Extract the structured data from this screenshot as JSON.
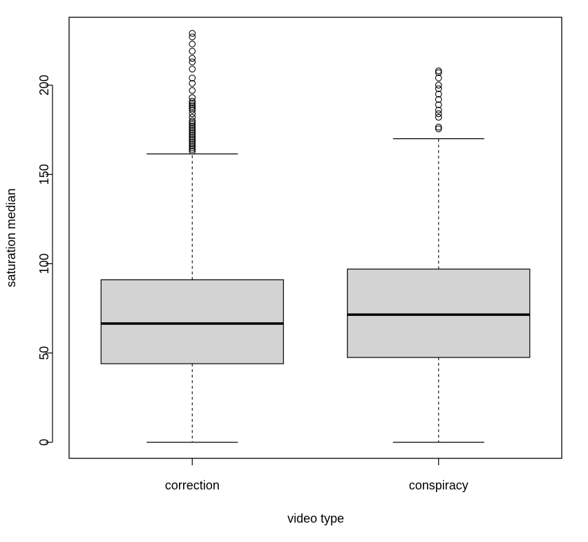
{
  "chart_data": {
    "type": "boxplot",
    "title": "",
    "xlabel": "video type",
    "ylabel": "saturation median",
    "ylim": [
      -9,
      238
    ],
    "y_ticks": [
      0,
      50,
      100,
      150,
      200
    ],
    "categories": [
      "correction",
      "conspiracy"
    ],
    "box_fill": "#d3d3d3",
    "line_color": "#000000",
    "boxes": [
      {
        "name": "correction",
        "whisker_low": 0,
        "q1": 44,
        "median": 66.5,
        "q3": 91,
        "whisker_high": 161.5,
        "outliers": [
          163,
          164,
          165,
          166,
          167,
          168,
          169,
          170,
          171,
          172,
          173,
          174,
          175,
          176,
          177,
          178,
          179,
          180,
          182,
          184,
          186,
          187,
          188,
          189,
          190,
          191,
          193,
          197,
          201,
          204,
          209,
          213,
          215,
          219,
          223,
          227,
          229
        ]
      },
      {
        "name": "conspiracy",
        "whisker_low": 0,
        "q1": 47.5,
        "median": 71.5,
        "q3": 97,
        "whisker_high": 170,
        "outliers": [
          175.5,
          176.5,
          182,
          184,
          186,
          189,
          192,
          195,
          198,
          200,
          204,
          207,
          208
        ]
      }
    ]
  }
}
